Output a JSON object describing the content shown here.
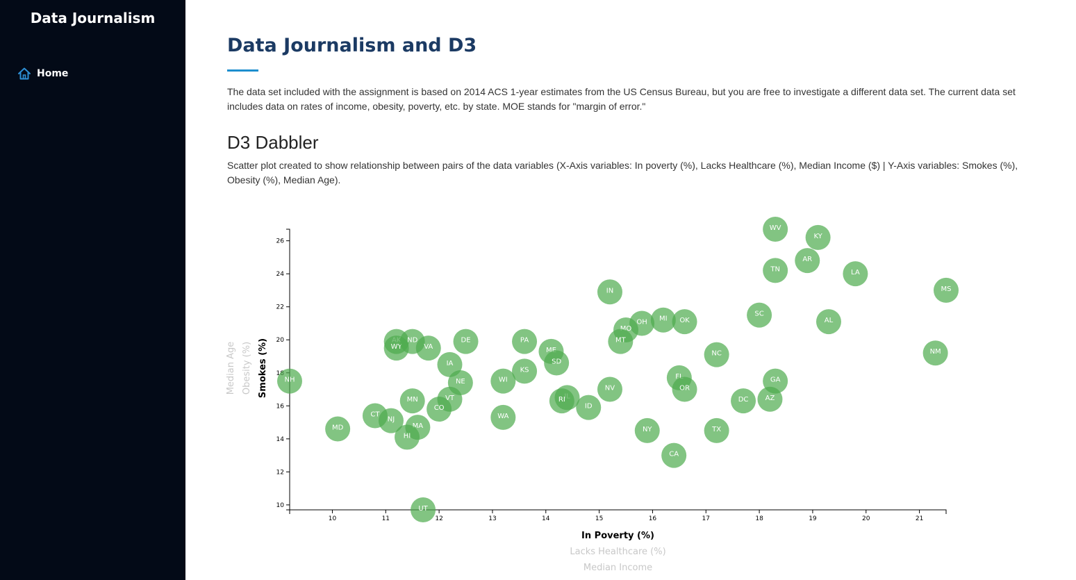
{
  "sidebar": {
    "brand": "Data Journalism",
    "nav": [
      {
        "label": "Home",
        "icon": "home-icon"
      }
    ]
  },
  "main": {
    "title": "Data Journalism and D3",
    "intro": "The data set included with the assignment is based on 2014 ACS 1-year estimates from the US Census Bureau, but you are free to investigate a different data set. The current data set includes data on rates of income, obesity, poverty, etc. by state. MOE stands for \"margin of error.\"",
    "section_title": "D3 Dabbler",
    "description": "Scatter plot created to show relationship between pairs of the data variables (X-Axis variables: In poverty (%), Lacks Healthcare (%), Median Income ($) | Y-Axis variables: Smokes (%), Obesity (%), Median Age)."
  },
  "colors": {
    "sidebar_bg": "#030a17",
    "title": "#1b3a63",
    "accent": "#1d8ece",
    "point": "#4dab4d"
  },
  "chart_data": {
    "type": "scatter",
    "x_axis_labels": [
      {
        "label": "In Poverty (%)",
        "active": true
      },
      {
        "label": "Lacks Healthcare (%)",
        "active": false
      },
      {
        "label": "Median Income",
        "active": false
      }
    ],
    "y_axis_labels": [
      {
        "label": "Smokes (%)",
        "active": true
      },
      {
        "label": "Obesity (%)",
        "active": false
      },
      {
        "label": "Median Age",
        "active": false
      }
    ],
    "xlim": [
      9.2,
      21.5
    ],
    "ylim": [
      9.7,
      26.7
    ],
    "x_ticks": [
      10,
      11,
      12,
      13,
      14,
      15,
      16,
      17,
      18,
      19,
      20,
      21
    ],
    "y_ticks": [
      10,
      12,
      14,
      16,
      18,
      20,
      22,
      24,
      26
    ],
    "grid": false,
    "legend": "none",
    "points": [
      {
        "abbr": "WV",
        "x": 18.3,
        "y": 26.7
      },
      {
        "abbr": "KY",
        "x": 19.1,
        "y": 26.2
      },
      {
        "abbr": "AR",
        "x": 18.9,
        "y": 24.8
      },
      {
        "abbr": "TN",
        "x": 18.3,
        "y": 24.2
      },
      {
        "abbr": "LA",
        "x": 19.8,
        "y": 24.0
      },
      {
        "abbr": "MS",
        "x": 21.5,
        "y": 23.0
      },
      {
        "abbr": "IN",
        "x": 15.2,
        "y": 22.9
      },
      {
        "abbr": "SC",
        "x": 18.0,
        "y": 21.5
      },
      {
        "abbr": "AL",
        "x": 19.3,
        "y": 21.1
      },
      {
        "abbr": "MI",
        "x": 16.2,
        "y": 21.2
      },
      {
        "abbr": "OK",
        "x": 16.6,
        "y": 21.1
      },
      {
        "abbr": "OH",
        "x": 15.8,
        "y": 21.0
      },
      {
        "abbr": "MO",
        "x": 15.5,
        "y": 20.6
      },
      {
        "abbr": "MT",
        "x": 15.4,
        "y": 19.9
      },
      {
        "abbr": "NC",
        "x": 17.2,
        "y": 19.1
      },
      {
        "abbr": "NM",
        "x": 21.3,
        "y": 19.2
      },
      {
        "abbr": "AK",
        "x": 11.2,
        "y": 19.9
      },
      {
        "abbr": "WY",
        "x": 11.2,
        "y": 19.5
      },
      {
        "abbr": "ND",
        "x": 11.5,
        "y": 19.9
      },
      {
        "abbr": "VA",
        "x": 11.8,
        "y": 19.5
      },
      {
        "abbr": "DE",
        "x": 12.5,
        "y": 19.9
      },
      {
        "abbr": "PA",
        "x": 13.6,
        "y": 19.9
      },
      {
        "abbr": "ME",
        "x": 14.1,
        "y": 19.3
      },
      {
        "abbr": "SD",
        "x": 14.2,
        "y": 18.6
      },
      {
        "abbr": "IA",
        "x": 12.2,
        "y": 18.5
      },
      {
        "abbr": "KS",
        "x": 13.6,
        "y": 18.1
      },
      {
        "abbr": "NE",
        "x": 12.4,
        "y": 17.4
      },
      {
        "abbr": "WI",
        "x": 13.2,
        "y": 17.5
      },
      {
        "abbr": "FL",
        "x": 16.5,
        "y": 17.7
      },
      {
        "abbr": "GA",
        "x": 18.3,
        "y": 17.5
      },
      {
        "abbr": "OR",
        "x": 16.6,
        "y": 17.0
      },
      {
        "abbr": "NV",
        "x": 15.2,
        "y": 17.0
      },
      {
        "abbr": "NH",
        "x": 9.2,
        "y": 17.5
      },
      {
        "abbr": "IL",
        "x": 14.4,
        "y": 16.5
      },
      {
        "abbr": "RI",
        "x": 14.3,
        "y": 16.3
      },
      {
        "abbr": "VT",
        "x": 12.2,
        "y": 16.4
      },
      {
        "abbr": "MN",
        "x": 11.5,
        "y": 16.3
      },
      {
        "abbr": "DC",
        "x": 17.7,
        "y": 16.3
      },
      {
        "abbr": "AZ",
        "x": 18.2,
        "y": 16.4
      },
      {
        "abbr": "ID",
        "x": 14.8,
        "y": 15.9
      },
      {
        "abbr": "CO",
        "x": 12.0,
        "y": 15.8
      },
      {
        "abbr": "CT",
        "x": 10.8,
        "y": 15.4
      },
      {
        "abbr": "NJ",
        "x": 11.1,
        "y": 15.1
      },
      {
        "abbr": "WA",
        "x": 13.2,
        "y": 15.3
      },
      {
        "abbr": "MA",
        "x": 11.6,
        "y": 14.7
      },
      {
        "abbr": "MD",
        "x": 10.1,
        "y": 14.6
      },
      {
        "abbr": "HI",
        "x": 11.4,
        "y": 14.1
      },
      {
        "abbr": "NY",
        "x": 15.9,
        "y": 14.5
      },
      {
        "abbr": "TX",
        "x": 17.2,
        "y": 14.5
      },
      {
        "abbr": "CA",
        "x": 16.4,
        "y": 13.0
      },
      {
        "abbr": "UT",
        "x": 11.7,
        "y": 9.7
      }
    ]
  }
}
